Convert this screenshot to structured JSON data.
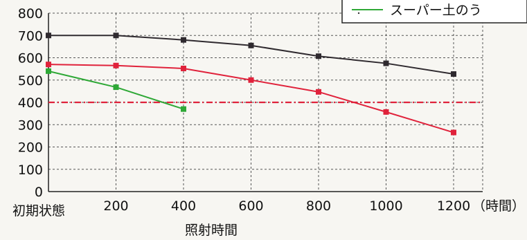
{
  "chart_data": {
    "type": "line",
    "x_labels": [
      "初期状態",
      "200",
      "400",
      "600",
      "800",
      "1000",
      "1200"
    ],
    "x_unit_label": "（時間）",
    "xlabel": "照射時間",
    "ylabel": "",
    "ylim": [
      0,
      800
    ],
    "y_ticks": [
      "0",
      "100",
      "200",
      "300",
      "400",
      "500",
      "600",
      "700",
      "800"
    ],
    "grid": true,
    "series": [
      {
        "name": "",
        "color": "#2f2a2f",
        "marker": "square",
        "values": [
          700,
          700,
          680,
          655,
          607,
          575,
          527
        ]
      },
      {
        "name": "",
        "color": "#e0223b",
        "marker": "square",
        "values": [
          570,
          565,
          552,
          500,
          447,
          357,
          265
        ]
      },
      {
        "name": "スーパー土のう",
        "color": "#2ea836",
        "marker": "square",
        "values": [
          540,
          468,
          370,
          null,
          null,
          null,
          null
        ]
      }
    ],
    "reference_line": {
      "value": 400,
      "color": "#e0223b",
      "style": "dash-dot"
    },
    "legend": {
      "placement": "top-right",
      "entries": [
        "スーパー土のう"
      ]
    }
  }
}
